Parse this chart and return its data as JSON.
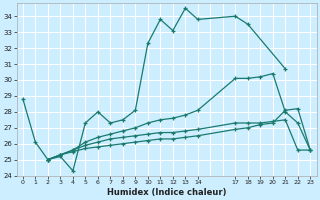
{
  "line1_x": [
    0,
    1,
    2,
    3,
    4,
    5,
    6,
    7,
    8,
    9,
    10,
    11,
    12,
    13,
    14,
    17,
    18,
    21
  ],
  "line1_y": [
    28.8,
    26.1,
    25.0,
    25.2,
    24.3,
    27.3,
    28.0,
    27.3,
    27.5,
    28.1,
    32.3,
    33.8,
    33.1,
    34.5,
    33.8,
    34.0,
    33.5,
    30.7
  ],
  "line2_x": [
    2,
    3,
    4,
    5,
    6,
    7,
    8,
    9,
    10,
    11,
    12,
    13,
    14,
    17,
    18,
    19,
    20,
    21,
    22,
    23
  ],
  "line2_y": [
    25.0,
    25.3,
    25.5,
    25.7,
    25.8,
    25.9,
    26.0,
    26.1,
    26.2,
    26.3,
    26.3,
    26.4,
    26.5,
    26.9,
    27.0,
    27.2,
    27.3,
    28.1,
    28.2,
    25.6
  ],
  "line3_x": [
    2,
    3,
    4,
    5,
    6,
    7,
    8,
    9,
    10,
    11,
    12,
    13,
    14,
    17,
    18,
    19,
    20,
    21,
    22,
    23
  ],
  "line3_y": [
    25.0,
    25.3,
    25.6,
    25.9,
    26.1,
    26.3,
    26.4,
    26.5,
    26.6,
    26.7,
    26.7,
    26.8,
    26.9,
    27.3,
    27.3,
    27.3,
    27.4,
    27.5,
    25.6,
    25.6
  ],
  "line4_x": [
    2,
    3,
    4,
    5,
    6,
    7,
    8,
    9,
    10,
    11,
    12,
    13,
    14,
    17,
    18,
    19,
    20,
    21,
    22,
    23
  ],
  "line4_y": [
    25.0,
    25.3,
    25.6,
    26.1,
    26.4,
    26.6,
    26.8,
    27.0,
    27.3,
    27.5,
    27.6,
    27.8,
    28.1,
    30.1,
    30.1,
    30.2,
    30.4,
    28.0,
    27.3,
    25.6
  ],
  "color": "#1a7a6e",
  "bg_color": "#cceeff",
  "grid_color": "#ffffff",
  "xlabel": "Humidex (Indice chaleur)",
  "xlim": [
    -0.5,
    23.5
  ],
  "ylim": [
    24,
    34.8
  ],
  "yticks": [
    24,
    25,
    26,
    27,
    28,
    29,
    30,
    31,
    32,
    33,
    34
  ],
  "xticks": [
    0,
    1,
    2,
    3,
    4,
    5,
    6,
    7,
    8,
    9,
    10,
    11,
    12,
    13,
    14,
    17,
    18,
    19,
    20,
    21,
    22,
    23
  ],
  "all_xtick_positions": [
    0,
    1,
    2,
    3,
    4,
    5,
    6,
    7,
    8,
    9,
    10,
    11,
    12,
    13,
    14,
    15,
    16,
    17,
    18,
    19,
    20,
    21,
    22,
    23
  ]
}
